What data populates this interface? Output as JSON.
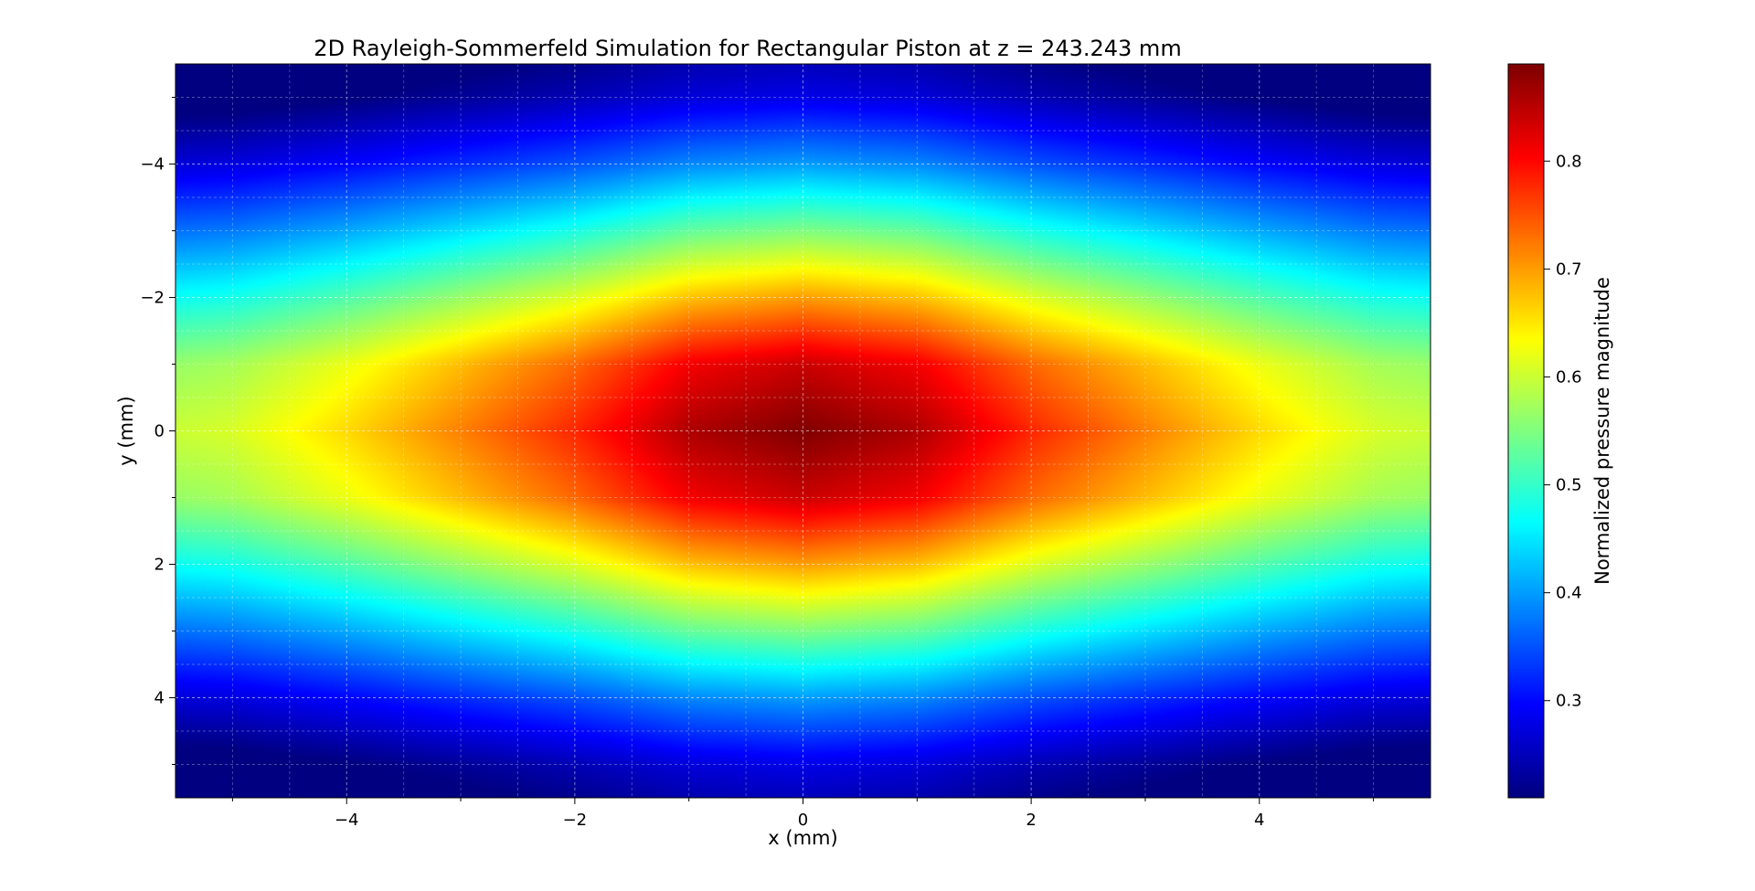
{
  "chart_data": {
    "type": "heatmap",
    "title": "2D Rayleigh-Sommerfeld Simulation for Rectangular Piston at z = 243.243 mm",
    "xlabel": "x (mm)",
    "ylabel": "y (mm)",
    "colorbar_label": "Normalized pressure magnitude",
    "colormap": "jet",
    "xlim": [
      -5.5,
      5.5
    ],
    "ylim": [
      5.5,
      -5.5
    ],
    "y_inverted": true,
    "x_ticks": [
      -4,
      -2,
      0,
      2,
      4
    ],
    "y_ticks": [
      -4,
      -2,
      0,
      2,
      4
    ],
    "x_tick_labels": [
      "−4",
      "−2",
      "0",
      "2",
      "4"
    ],
    "y_tick_labels": [
      "−4",
      "−2",
      "0",
      "2",
      "4"
    ],
    "colorbar_range": [
      0.21,
      0.89
    ],
    "colorbar_ticks": [
      0.3,
      0.4,
      0.5,
      0.6,
      0.7,
      0.8
    ],
    "colorbar_tick_labels": [
      "0.3",
      "0.4",
      "0.5",
      "0.6",
      "0.7",
      "0.8"
    ],
    "grid": true,
    "peak": {
      "x": 0,
      "y": 0,
      "value": 0.89
    },
    "field_samples": {
      "along_x_at_y0": [
        [
          0,
          0.89
        ],
        [
          1,
          0.86
        ],
        [
          2,
          0.78
        ],
        [
          3,
          0.72
        ],
        [
          4,
          0.66
        ],
        [
          5,
          0.61
        ],
        [
          5.5,
          0.6
        ]
      ],
      "along_y_at_x0": [
        [
          0,
          0.89
        ],
        [
          1,
          0.84
        ],
        [
          2,
          0.7
        ],
        [
          3,
          0.55
        ],
        [
          4,
          0.4
        ],
        [
          5,
          0.28
        ],
        [
          5.5,
          0.25
        ]
      ]
    }
  }
}
